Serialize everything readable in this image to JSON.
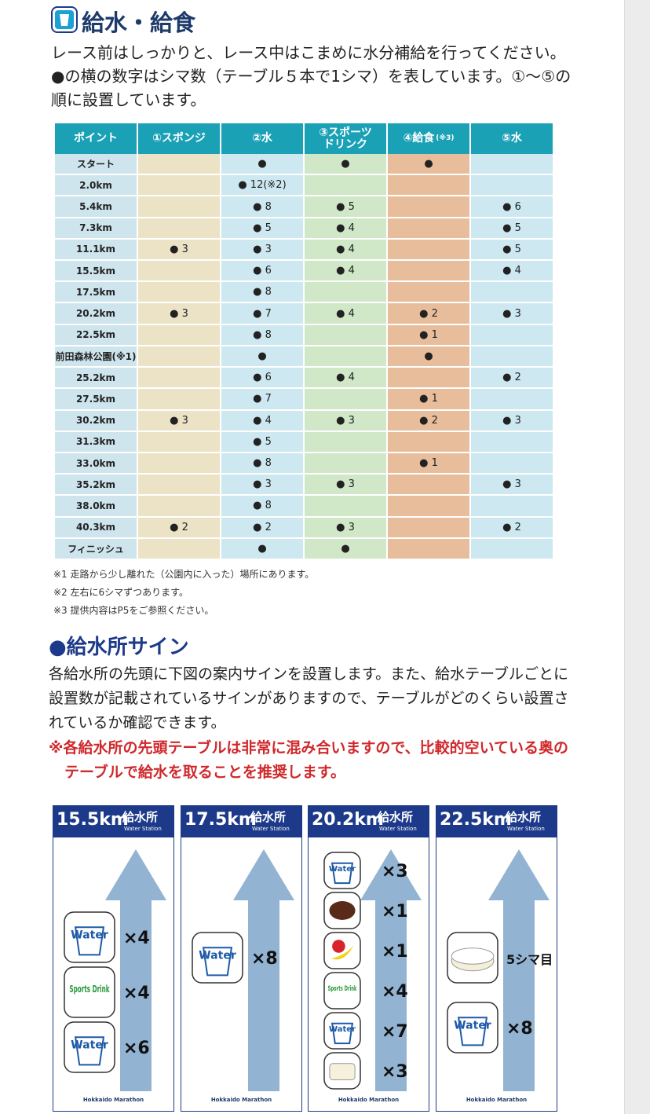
{
  "header": {
    "title": "給水・給食",
    "lines": [
      "レース前はしっかりと、レース中はこまめに水分補給を行ってください。",
      "●の横の数字はシマ数（テーブル５本で1シマ）を表しています。①～⑤の順に設置しています。"
    ]
  },
  "table": {
    "columns": [
      {
        "label": "ポイント"
      },
      {
        "label": "①スポンジ"
      },
      {
        "label": "②水"
      },
      {
        "label": "③スポーツドリンク"
      },
      {
        "label": "④給食",
        "note": "(※3)"
      },
      {
        "label": "⑤水"
      }
    ],
    "rows": [
      [
        "スタート",
        null,
        "●",
        "●",
        "●",
        null
      ],
      [
        "2.0km",
        null,
        "● 12(※2)",
        null,
        null,
        null
      ],
      [
        "5.4km",
        null,
        "● 8",
        "● 5",
        null,
        "● 6"
      ],
      [
        "7.3km",
        null,
        "● 5",
        "● 4",
        null,
        "● 5"
      ],
      [
        "11.1km",
        "● 3",
        "● 3",
        "● 4",
        null,
        "● 5"
      ],
      [
        "15.5km",
        null,
        "● 6",
        "● 4",
        null,
        "● 4"
      ],
      [
        "17.5km",
        null,
        "● 8",
        null,
        null,
        null
      ],
      [
        "20.2km",
        "● 3",
        "● 7",
        "● 4",
        "● 2",
        "● 3"
      ],
      [
        "22.5km",
        null,
        "● 8",
        null,
        "● 1",
        null
      ],
      [
        "前田森林公園(※1)",
        null,
        "●",
        null,
        "●",
        null
      ],
      [
        "25.2km",
        null,
        "● 6",
        "● 4",
        null,
        "● 2"
      ],
      [
        "27.5km",
        null,
        "● 7",
        null,
        "● 1",
        null
      ],
      [
        "30.2km",
        "● 3",
        "● 4",
        "● 3",
        "● 2",
        "● 3"
      ],
      [
        "31.3km",
        null,
        "● 5",
        null,
        null,
        null
      ],
      [
        "33.0km",
        null,
        "● 8",
        null,
        "● 1",
        null
      ],
      [
        "35.2km",
        null,
        "● 3",
        "● 3",
        null,
        "● 3"
      ],
      [
        "38.0km",
        null,
        "● 8",
        null,
        null,
        null
      ],
      [
        "40.3km",
        "● 2",
        "● 2",
        "● 3",
        null,
        "● 2"
      ],
      [
        "フィニッシュ",
        null,
        "●",
        "●",
        null,
        null
      ]
    ],
    "notes": [
      "※1 走路から少し離れた（公園内に入った）場所にあります。",
      "※2 左右に6シマずつあります。",
      "※3 提供内容はP5をご参照ください。"
    ]
  },
  "signs_section": {
    "title": "●給水所サイン",
    "text": "各給水所の先頭に下図の案内サインを設置します。また、給水テーブルごとに設置数が記載されているサインがありますので、テーブルがどのくらい設置されているか確認できます。",
    "warning": "※各給水所の先頭テーブルは非常に混み合いますので、比較的空いている奥のテーブルで給水を取ることを推奨します。",
    "signs": [
      {
        "km": "15.5km",
        "station": "給水所",
        "station_en": "Water Station",
        "footer": "Hokkaido Marathon",
        "items": [
          {
            "icon": "water",
            "icon_text": "Water",
            "count": "×4"
          },
          {
            "icon": "sports",
            "icon_text": "Sports Drink",
            "count": "×4"
          },
          {
            "icon": "water",
            "icon_text": "Water",
            "count": "×6"
          }
        ]
      },
      {
        "km": "17.5km",
        "station": "給水所",
        "station_en": "Water Station",
        "footer": "Hokkaido Marathon",
        "items": [
          {
            "icon": "water",
            "icon_text": "Water",
            "count": "×8"
          }
        ]
      },
      {
        "km": "20.2km",
        "station": "給水所",
        "station_en": "Water Station",
        "footer": "Hokkaido Marathon",
        "items": [
          {
            "icon": "water",
            "icon_text": "Water",
            "count": "×3"
          },
          {
            "icon": "sweets",
            "count": "×1"
          },
          {
            "icon": "fruit",
            "count": "×1"
          },
          {
            "icon": "sports",
            "icon_text": "Sports Drink",
            "count": "×4"
          },
          {
            "icon": "water",
            "icon_text": "Water",
            "count": "×7"
          },
          {
            "icon": "bread",
            "count": "×3"
          }
        ]
      },
      {
        "km": "22.5km",
        "station": "給水所",
        "station_en": "Water Station",
        "footer": "Hokkaido Marathon",
        "items": [
          {
            "icon": "cake",
            "count": "5シマ目"
          },
          {
            "icon": "water",
            "icon_text": "Water",
            "count": "×8"
          }
        ]
      }
    ]
  }
}
